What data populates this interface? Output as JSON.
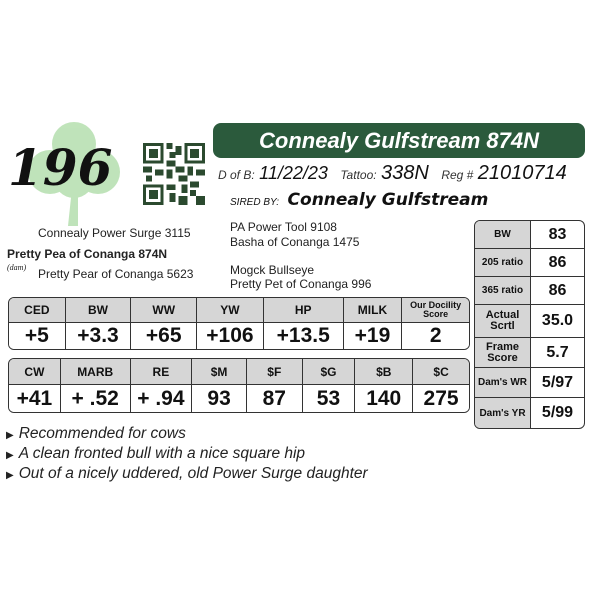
{
  "lot_number": "196",
  "title": "Connealy Gulfstream 874N",
  "dob_label": "D of B:",
  "dob": "11/22/23",
  "tattoo_label": "Tattoo:",
  "tattoo": "338N",
  "reg_label": "Reg #",
  "reg": "21010714",
  "sired_by_label": "SIRED BY:",
  "sire": "Connealy Gulfstream",
  "pedigree": {
    "sire_sire": "PA Power Tool 9108",
    "sire_dam": "Basha of Conanga 1475",
    "dam_sire": "Connealy Power Surge 3115",
    "dam": "Pretty Pea of Conanga 874N",
    "dam_label": "(dam)",
    "dam_dam": "Pretty Pear of Conanga 5623",
    "dam_dam_sire": "Mogck Bullseye",
    "dam_dam_dam": "Pretty Pet of Conanga 996"
  },
  "epd1": {
    "headers": [
      "CED",
      "BW",
      "WW",
      "YW",
      "HP",
      "MILK",
      "Our Docility Score"
    ],
    "values": [
      "+5",
      "+3.3",
      "+65",
      "+106",
      "+13.5",
      "+19",
      "2"
    ]
  },
  "epd2": {
    "headers": [
      "CW",
      "MARB",
      "RE",
      "$M",
      "$F",
      "$G",
      "$B",
      "$C"
    ],
    "values": [
      "+41",
      "+ .52",
      "+ .94",
      "93",
      "87",
      "53",
      "140",
      "275"
    ]
  },
  "side": [
    {
      "label": "BW",
      "value": "83"
    },
    {
      "label": "205 ratio",
      "value": "86"
    },
    {
      "label": "365 ratio",
      "value": "86"
    },
    {
      "label": "Actual Scrtl",
      "value": "35.0"
    },
    {
      "label": "Frame Score",
      "value": "5.7"
    },
    {
      "label": "Dam's WR",
      "value": "5/97"
    },
    {
      "label": "Dam's YR",
      "value": "5/99"
    }
  ],
  "notes": [
    "Recommended for cows",
    "A clean fronted bull with a nice square hip",
    "Out of a nicely uddered, old Power Surge daughter"
  ],
  "colors": {
    "title_bar": "#2b5a3c",
    "clover": "#a8d8a0",
    "header_cell": "#d6d6d6"
  },
  "icons": {
    "logo": "shamrock-icon",
    "code": "qr-code-icon",
    "bullet": "triangle-bullet-icon"
  }
}
